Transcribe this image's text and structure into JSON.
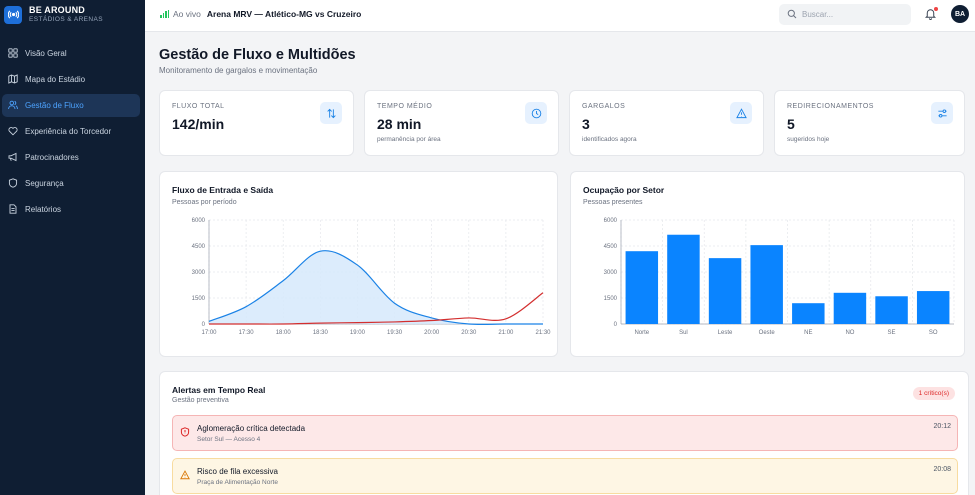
{
  "brand": {
    "name": "BE AROUND",
    "subtitle": "ESTÁDIOS & ARENAS"
  },
  "sidebar": {
    "items": [
      {
        "label": "Visão Geral",
        "icon": "grid-icon",
        "active": false
      },
      {
        "label": "Mapa do Estádio",
        "icon": "map-icon",
        "active": false
      },
      {
        "label": "Gestão de Fluxo",
        "icon": "users-icon",
        "active": true
      },
      {
        "label": "Experiência do Torcedor",
        "icon": "heart-icon",
        "active": false
      },
      {
        "label": "Patrocinadores",
        "icon": "megaphone-icon",
        "active": false
      },
      {
        "label": "Segurança",
        "icon": "shield-icon",
        "active": false
      },
      {
        "label": "Relatórios",
        "icon": "document-icon",
        "active": false
      }
    ]
  },
  "header": {
    "live_label": "Ao vivo",
    "event_title": "Arena MRV — Atlético-MG vs Cruzeiro",
    "search_placeholder": "Buscar...",
    "avatar_initials": "BA"
  },
  "page": {
    "title": "Gestão de Fluxo e Multidões",
    "subtitle": "Monitoramento de gargalos e movimentação"
  },
  "stats": [
    {
      "label": "FLUXO TOTAL",
      "value": "142/min",
      "note": "",
      "icon": "arrows-swap-icon"
    },
    {
      "label": "TEMPO MÉDIO",
      "value": "28 min",
      "note": "permanência por área",
      "icon": "clock-icon"
    },
    {
      "label": "GARGALOS",
      "value": "3",
      "note": "identificados agora",
      "icon": "warning-icon"
    },
    {
      "label": "REDIRECIONAMENTOS",
      "value": "5",
      "note": "sugeridos hoje",
      "icon": "sliders-icon"
    }
  ],
  "flow_panel": {
    "title": "Fluxo de Entrada e Saída",
    "subtitle": "Pessoas por período"
  },
  "sector_panel": {
    "title": "Ocupação por Setor",
    "subtitle": "Pessoas presentes"
  },
  "chart_data": [
    {
      "type": "area",
      "title": "Fluxo de Entrada e Saída",
      "x": [
        "17:00",
        "17:30",
        "18:00",
        "18:30",
        "19:00",
        "19:30",
        "20:00",
        "20:30",
        "21:00",
        "21:30"
      ],
      "x_ticks": [
        "17:00",
        "17:30",
        "18:00",
        "18:30",
        "19:00",
        "19:30",
        "20:00",
        "20:30",
        "21:00",
        "21:30"
      ],
      "y_ticks": [
        "0",
        "1500",
        "3000",
        "4500",
        "6000"
      ],
      "ylim": [
        0,
        6000
      ],
      "grid": true,
      "series": [
        {
          "values": [
            150,
            1000,
            2500,
            4200,
            3400,
            1200,
            350,
            0,
            0,
            0
          ],
          "color": "#1a82e6",
          "fill": "#d6e9fb"
        },
        {
          "values": [
            0,
            0,
            0,
            50,
            80,
            120,
            200,
            350,
            300,
            1800
          ],
          "color": "#d32f2f",
          "fill": "none"
        }
      ]
    },
    {
      "type": "bar",
      "title": "Ocupação por Setor",
      "categories": [
        "Norte",
        "Sul",
        "Leste",
        "Oeste",
        "NE",
        "NO",
        "SE",
        "SO"
      ],
      "values": [
        4200,
        5150,
        3800,
        4550,
        1200,
        1800,
        1600,
        1900
      ],
      "y_ticks": [
        "0",
        "1500",
        "3000",
        "4500",
        "6000"
      ],
      "ylim": [
        0,
        6000
      ],
      "grid": true,
      "color": "#0a84ff"
    }
  ],
  "alerts_panel": {
    "title": "Alertas em Tempo Real",
    "subtitle": "Gestão preventiva",
    "badge": "1 crítico(s)",
    "items": [
      {
        "level": "critical",
        "title": "Aglomeração crítica detectada",
        "location": "Setor Sul — Acesso 4",
        "time": "20:12",
        "icon": "shield-alert-icon",
        "color": "#dc2626"
      },
      {
        "level": "warning",
        "title": "Risco de fila excessiva",
        "location": "Praça de Alimentação Norte",
        "time": "20:08",
        "icon": "warning-icon",
        "color": "#d97706"
      }
    ]
  }
}
